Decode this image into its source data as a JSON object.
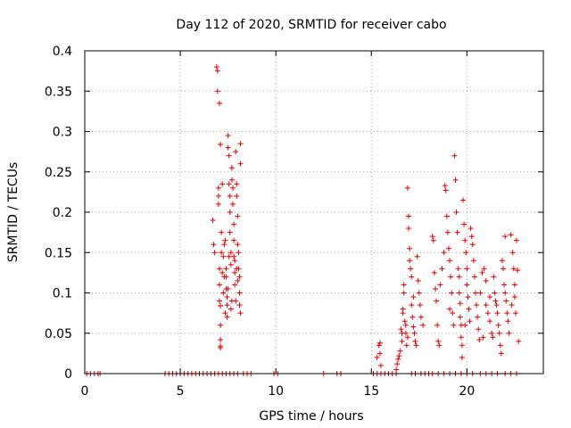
{
  "chart_data": {
    "type": "scatter",
    "title": "Day 112 of 2020, SRMTID for receiver cabo",
    "xlabel": "GPS time / hours",
    "ylabel": "SRMTID / TECUs",
    "xlim": [
      0,
      24
    ],
    "ylim": [
      0,
      0.4
    ],
    "xticks": [
      "0",
      "5",
      "10",
      "15",
      "20"
    ],
    "yticks": [
      "0",
      "0.05",
      "0.1",
      "0.15",
      "0.2",
      "0.25",
      "0.3",
      "0.35",
      "0.4"
    ],
    "grid": true,
    "marker": "+",
    "color": "#e00000",
    "series": [
      {
        "name": "SRMTID",
        "points": [
          [
            0.1,
            0
          ],
          [
            0.3,
            0
          ],
          [
            0.5,
            0
          ],
          [
            0.7,
            0
          ],
          [
            0.8,
            0
          ],
          [
            4.2,
            0
          ],
          [
            4.4,
            0
          ],
          [
            4.6,
            0
          ],
          [
            4.8,
            0
          ],
          [
            5.0,
            0
          ],
          [
            5.2,
            0
          ],
          [
            5.4,
            0
          ],
          [
            5.6,
            0
          ],
          [
            5.8,
            0
          ],
          [
            6.0,
            0
          ],
          [
            6.2,
            0
          ],
          [
            6.4,
            0
          ],
          [
            6.6,
            0
          ],
          [
            6.8,
            0
          ],
          [
            7.0,
            0
          ],
          [
            7.2,
            0
          ],
          [
            7.4,
            0
          ],
          [
            7.6,
            0
          ],
          [
            7.8,
            0
          ],
          [
            8.0,
            0
          ],
          [
            8.3,
            0
          ],
          [
            8.5,
            0
          ],
          [
            8.7,
            0
          ],
          [
            9.9,
            0
          ],
          [
            10.1,
            0
          ],
          [
            12.5,
            0
          ],
          [
            13.2,
            0
          ],
          [
            13.4,
            0
          ],
          [
            15.1,
            0
          ],
          [
            15.3,
            0
          ],
          [
            15.5,
            0
          ],
          [
            15.7,
            0
          ],
          [
            15.9,
            0
          ],
          [
            16.1,
            0
          ],
          [
            16.3,
            0
          ],
          [
            17.1,
            0
          ],
          [
            17.3,
            0
          ],
          [
            17.6,
            0
          ],
          [
            17.8,
            0
          ],
          [
            18.0,
            0
          ],
          [
            18.2,
            0
          ],
          [
            18.5,
            0
          ],
          [
            18.8,
            0
          ],
          [
            19.1,
            0
          ],
          [
            19.4,
            0
          ],
          [
            19.7,
            0
          ],
          [
            20.0,
            0
          ],
          [
            20.3,
            0
          ],
          [
            20.7,
            0
          ],
          [
            21.0,
            0
          ],
          [
            21.3,
            0
          ],
          [
            21.6,
            0
          ],
          [
            22.0,
            0
          ],
          [
            22.3,
            0
          ],
          [
            22.6,
            0
          ],
          [
            6.7,
            0.19
          ],
          [
            6.75,
            0.16
          ],
          [
            6.8,
            0.15
          ],
          [
            6.9,
            0.38
          ],
          [
            6.95,
            0.375
          ],
          [
            6.95,
            0.35
          ],
          [
            7.0,
            0.23
          ],
          [
            7.0,
            0.22
          ],
          [
            7.0,
            0.21
          ],
          [
            7.05,
            0.13
          ],
          [
            7.05,
            0.11
          ],
          [
            7.05,
            0.09
          ],
          [
            7.1,
            0.084
          ],
          [
            7.1,
            0.06
          ],
          [
            7.1,
            0.042
          ],
          [
            7.1,
            0.034
          ],
          [
            7.1,
            0.032
          ],
          [
            7.05,
            0.335
          ],
          [
            7.1,
            0.284
          ],
          [
            7.15,
            0.175
          ],
          [
            7.15,
            0.15
          ],
          [
            7.2,
            0.125
          ],
          [
            7.25,
            0.1
          ],
          [
            7.3,
            0.16
          ],
          [
            7.35,
            0.165
          ],
          [
            7.4,
            0.13
          ],
          [
            7.4,
            0.12
          ],
          [
            7.4,
            0.105
          ],
          [
            7.45,
            0.085
          ],
          [
            7.45,
            0.07
          ],
          [
            7.5,
            0.295
          ],
          [
            7.5,
            0.28
          ],
          [
            7.55,
            0.27
          ],
          [
            7.55,
            0.235
          ],
          [
            7.6,
            0.22
          ],
          [
            7.6,
            0.2
          ],
          [
            7.6,
            0.175
          ],
          [
            7.65,
            0.15
          ],
          [
            7.65,
            0.135
          ],
          [
            7.7,
            0.255
          ],
          [
            7.7,
            0.24
          ],
          [
            7.75,
            0.23
          ],
          [
            7.75,
            0.21
          ],
          [
            7.8,
            0.185
          ],
          [
            7.8,
            0.165
          ],
          [
            7.8,
            0.145
          ],
          [
            7.85,
            0.125
          ],
          [
            7.85,
            0.11
          ],
          [
            7.9,
            0.09
          ],
          [
            7.9,
            0.275
          ],
          [
            7.95,
            0.235
          ],
          [
            7.95,
            0.22
          ],
          [
            8.0,
            0.195
          ],
          [
            8.0,
            0.16
          ],
          [
            8.05,
            0.15
          ],
          [
            8.05,
            0.13
          ],
          [
            8.1,
            0.12
          ],
          [
            8.1,
            0.1
          ],
          [
            8.1,
            0.085
          ],
          [
            8.15,
            0.285
          ],
          [
            8.15,
            0.26
          ],
          [
            8.15,
            0.075
          ],
          [
            7.3,
            0.12
          ],
          [
            7.5,
            0.105
          ],
          [
            7.7,
            0.09
          ],
          [
            7.25,
            0.145
          ],
          [
            7.55,
            0.145
          ],
          [
            7.85,
            0.14
          ],
          [
            7.35,
            0.075
          ],
          [
            7.65,
            0.08
          ],
          [
            8.0,
            0.115
          ],
          [
            7.2,
            0.235
          ],
          [
            7.45,
            0.095
          ],
          [
            7.95,
            0.13
          ],
          [
            15.3,
            0.02
          ],
          [
            15.4,
            0.035
          ],
          [
            15.45,
            0.038
          ],
          [
            15.45,
            0.025
          ],
          [
            15.5,
            0.01
          ],
          [
            16.3,
            0.005
          ],
          [
            16.35,
            0.012
          ],
          [
            16.4,
            0.018
          ],
          [
            16.45,
            0.022
          ],
          [
            16.5,
            0.028
          ],
          [
            16.55,
            0.055
          ],
          [
            16.6,
            0.05
          ],
          [
            16.6,
            0.04
          ],
          [
            16.65,
            0.08
          ],
          [
            16.65,
            0.075
          ],
          [
            16.7,
            0.1
          ],
          [
            16.7,
            0.11
          ],
          [
            16.75,
            0.065
          ],
          [
            16.8,
            0.06
          ],
          [
            16.8,
            0.05
          ],
          [
            16.85,
            0.035
          ],
          [
            16.9,
            0.045
          ],
          [
            16.9,
            0.23
          ],
          [
            16.95,
            0.195
          ],
          [
            16.95,
            0.18
          ],
          [
            17.0,
            0.155
          ],
          [
            17.0,
            0.14
          ],
          [
            17.05,
            0.13
          ],
          [
            17.1,
            0.12
          ],
          [
            17.1,
            0.085
          ],
          [
            17.15,
            0.07
          ],
          [
            17.2,
            0.058
          ],
          [
            17.25,
            0.05
          ],
          [
            17.3,
            0.04
          ],
          [
            17.35,
            0.035
          ],
          [
            17.4,
            0.145
          ],
          [
            17.45,
            0.115
          ],
          [
            17.5,
            0.1
          ],
          [
            17.55,
            0.085
          ],
          [
            17.6,
            0.07
          ],
          [
            17.7,
            0.06
          ],
          [
            18.2,
            0.17
          ],
          [
            18.25,
            0.165
          ],
          [
            18.3,
            0.125
          ],
          [
            18.35,
            0.105
          ],
          [
            18.4,
            0.09
          ],
          [
            18.45,
            0.06
          ],
          [
            18.5,
            0.04
          ],
          [
            18.55,
            0.035
          ],
          [
            18.6,
            0.11
          ],
          [
            18.7,
            0.13
          ],
          [
            18.8,
            0.15
          ],
          [
            18.85,
            0.233
          ],
          [
            18.9,
            0.227
          ],
          [
            18.95,
            0.195
          ],
          [
            19.0,
            0.175
          ],
          [
            19.05,
            0.155
          ],
          [
            19.1,
            0.14
          ],
          [
            19.1,
            0.08
          ],
          [
            19.15,
            0.12
          ],
          [
            19.2,
            0.1
          ],
          [
            19.25,
            0.075
          ],
          [
            19.3,
            0.06
          ],
          [
            19.35,
            0.27
          ],
          [
            19.4,
            0.24
          ],
          [
            19.45,
            0.2
          ],
          [
            19.5,
            0.175
          ],
          [
            19.55,
            0.13
          ],
          [
            19.6,
            0.12
          ],
          [
            19.6,
            0.1
          ],
          [
            19.65,
            0.087
          ],
          [
            19.65,
            0.07
          ],
          [
            19.7,
            0.06
          ],
          [
            19.7,
            0.045
          ],
          [
            19.75,
            0.035
          ],
          [
            19.75,
            0.02
          ],
          [
            19.8,
            0.215
          ],
          [
            19.85,
            0.185
          ],
          [
            19.9,
            0.165
          ],
          [
            19.95,
            0.15
          ],
          [
            20.0,
            0.13
          ],
          [
            20.0,
            0.11
          ],
          [
            20.05,
            0.095
          ],
          [
            20.1,
            0.08
          ],
          [
            20.15,
            0.065
          ],
          [
            20.2,
            0.18
          ],
          [
            20.25,
            0.17
          ],
          [
            20.3,
            0.16
          ],
          [
            20.35,
            0.14
          ],
          [
            20.4,
            0.12
          ],
          [
            20.45,
            0.1
          ],
          [
            20.5,
            0.085
          ],
          [
            20.55,
            0.07
          ],
          [
            20.6,
            0.055
          ],
          [
            20.65,
            0.042
          ],
          [
            20.7,
            0.1
          ],
          [
            20.8,
            0.125
          ],
          [
            20.9,
            0.13
          ],
          [
            21.0,
            0.115
          ],
          [
            21.0,
            0.085
          ],
          [
            21.1,
            0.075
          ],
          [
            21.2,
            0.065
          ],
          [
            21.3,
            0.05
          ],
          [
            21.35,
            0.045
          ],
          [
            21.4,
            0.12
          ],
          [
            21.45,
            0.1
          ],
          [
            21.5,
            0.09
          ],
          [
            21.55,
            0.085
          ],
          [
            21.6,
            0.075
          ],
          [
            21.65,
            0.06
          ],
          [
            21.7,
            0.05
          ],
          [
            21.75,
            0.035
          ],
          [
            21.8,
            0.025
          ],
          [
            21.85,
            0.14
          ],
          [
            21.9,
            0.13
          ],
          [
            21.95,
            0.11
          ],
          [
            22.0,
            0.1
          ],
          [
            22.05,
            0.09
          ],
          [
            22.1,
            0.075
          ],
          [
            22.15,
            0.065
          ],
          [
            22.2,
            0.05
          ],
          [
            22.0,
            0.17
          ],
          [
            22.3,
            0.172
          ],
          [
            22.4,
            0.15
          ],
          [
            22.45,
            0.13
          ],
          [
            22.5,
            0.11
          ],
          [
            22.5,
            0.095
          ],
          [
            22.55,
            0.075
          ],
          [
            22.6,
            0.165
          ],
          [
            22.65,
            0.128
          ],
          [
            22.7,
            0.04
          ],
          [
            22.35,
            0.085
          ],
          [
            21.2,
            0.095
          ],
          [
            20.85,
            0.045
          ],
          [
            19.9,
            0.06
          ],
          [
            17.2,
            0.095
          ]
        ]
      }
    ]
  }
}
